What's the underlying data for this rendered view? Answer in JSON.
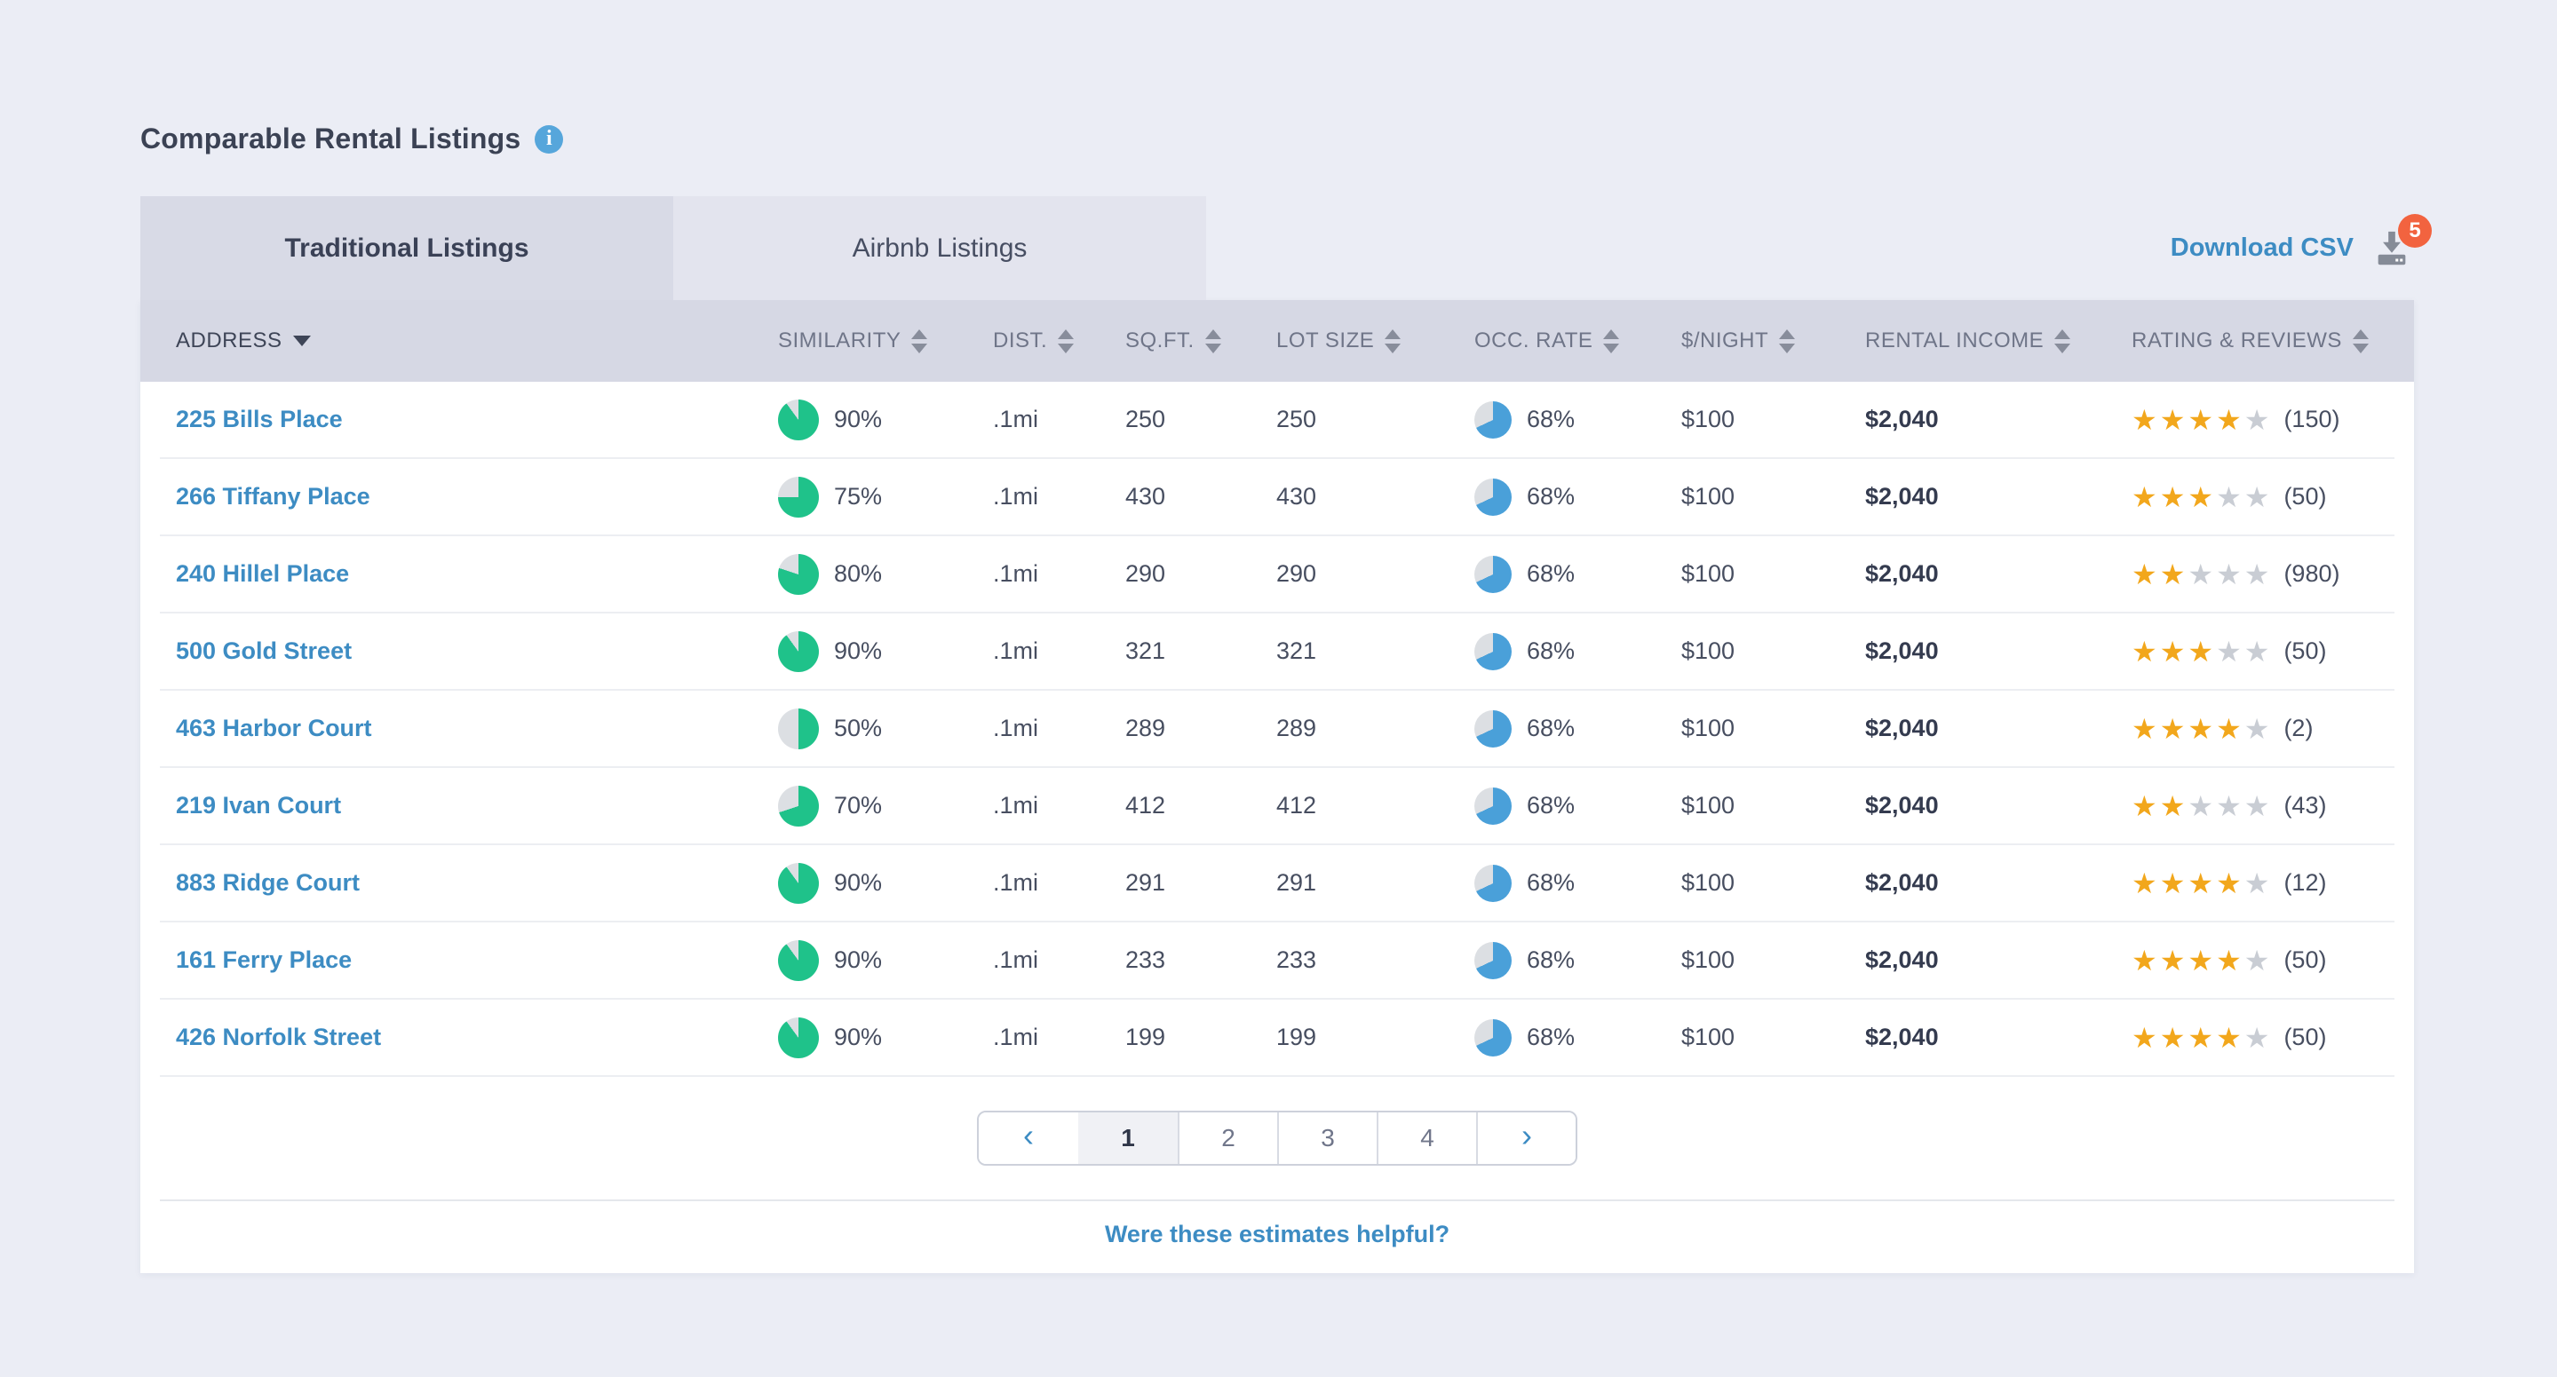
{
  "header": {
    "title": "Comparable Rental Listings",
    "info_icon_glyph": "i"
  },
  "tabs": [
    {
      "label": "Traditional Listings",
      "active": true
    },
    {
      "label": "Airbnb Listings",
      "active": false
    }
  ],
  "download": {
    "label": "Download CSV",
    "badge_count": "5"
  },
  "table": {
    "columns": [
      {
        "label": "ADDRESS",
        "sort": "desc"
      },
      {
        "label": "SIMILARITY",
        "sort": "both"
      },
      {
        "label": "DIST.",
        "sort": "both"
      },
      {
        "label": "SQ.FT.",
        "sort": "both"
      },
      {
        "label": "LOT SIZE",
        "sort": "both"
      },
      {
        "label": "OCC. RATE",
        "sort": "both"
      },
      {
        "label": "$/NIGHT",
        "sort": "both"
      },
      {
        "label": "RENTAL INCOME",
        "sort": "both"
      },
      {
        "label": "RATING & REVIEWS",
        "sort": "both"
      }
    ],
    "rows": [
      {
        "address": "225 Bills Place",
        "similarity_pct": 90,
        "similarity": "90%",
        "dist": ".1mi",
        "sqft": "250",
        "lot_size": "250",
        "occ_pct": 68,
        "occ_rate": "68%",
        "price_night": "$100",
        "rental_income": "$2,040",
        "stars": 4,
        "reviews": "(150)"
      },
      {
        "address": "266 Tiffany Place",
        "similarity_pct": 75,
        "similarity": "75%",
        "dist": ".1mi",
        "sqft": "430",
        "lot_size": "430",
        "occ_pct": 68,
        "occ_rate": "68%",
        "price_night": "$100",
        "rental_income": "$2,040",
        "stars": 3,
        "reviews": "(50)"
      },
      {
        "address": "240 Hillel Place",
        "similarity_pct": 80,
        "similarity": "80%",
        "dist": ".1mi",
        "sqft": "290",
        "lot_size": "290",
        "occ_pct": 68,
        "occ_rate": "68%",
        "price_night": "$100",
        "rental_income": "$2,040",
        "stars": 2,
        "reviews": "(980)"
      },
      {
        "address": "500 Gold Street",
        "similarity_pct": 90,
        "similarity": "90%",
        "dist": ".1mi",
        "sqft": "321",
        "lot_size": "321",
        "occ_pct": 68,
        "occ_rate": "68%",
        "price_night": "$100",
        "rental_income": "$2,040",
        "stars": 3,
        "reviews": "(50)"
      },
      {
        "address": "463 Harbor Court",
        "similarity_pct": 50,
        "similarity": "50%",
        "dist": ".1mi",
        "sqft": "289",
        "lot_size": "289",
        "occ_pct": 68,
        "occ_rate": "68%",
        "price_night": "$100",
        "rental_income": "$2,040",
        "stars": 4,
        "reviews": "(2)"
      },
      {
        "address": "219 Ivan Court",
        "similarity_pct": 70,
        "similarity": "70%",
        "dist": ".1mi",
        "sqft": "412",
        "lot_size": "412",
        "occ_pct": 68,
        "occ_rate": "68%",
        "price_night": "$100",
        "rental_income": "$2,040",
        "stars": 2,
        "reviews": "(43)"
      },
      {
        "address": "883 Ridge Court",
        "similarity_pct": 90,
        "similarity": "90%",
        "dist": ".1mi",
        "sqft": "291",
        "lot_size": "291",
        "occ_pct": 68,
        "occ_rate": "68%",
        "price_night": "$100",
        "rental_income": "$2,040",
        "stars": 4,
        "reviews": "(12)"
      },
      {
        "address": "161 Ferry Place",
        "similarity_pct": 90,
        "similarity": "90%",
        "dist": ".1mi",
        "sqft": "233",
        "lot_size": "233",
        "occ_pct": 68,
        "occ_rate": "68%",
        "price_night": "$100",
        "rental_income": "$2,040",
        "stars": 4,
        "reviews": "(50)"
      },
      {
        "address": "426 Norfolk Street",
        "similarity_pct": 90,
        "similarity": "90%",
        "dist": ".1mi",
        "sqft": "199",
        "lot_size": "199",
        "occ_pct": 68,
        "occ_rate": "68%",
        "price_night": "$100",
        "rental_income": "$2,040",
        "stars": 4,
        "reviews": "(50)"
      }
    ]
  },
  "pagination": {
    "prev_icon": "‹",
    "pages": [
      "1",
      "2",
      "3",
      "4"
    ],
    "active_page": "1",
    "next_icon": "›"
  },
  "footer": {
    "link_label": "Were these estimates helpful?"
  },
  "icons": {
    "star_glyph": "★"
  },
  "colors": {
    "similarity_pie": "#1fc28a",
    "occupancy_pie": "#4aa0d9",
    "pie_track": "#dcdfe3",
    "star_filled": "#f2a71c",
    "star_empty": "#c9cdd4",
    "link_blue": "#3d8cc3",
    "badge_orange": "#f2633f"
  }
}
